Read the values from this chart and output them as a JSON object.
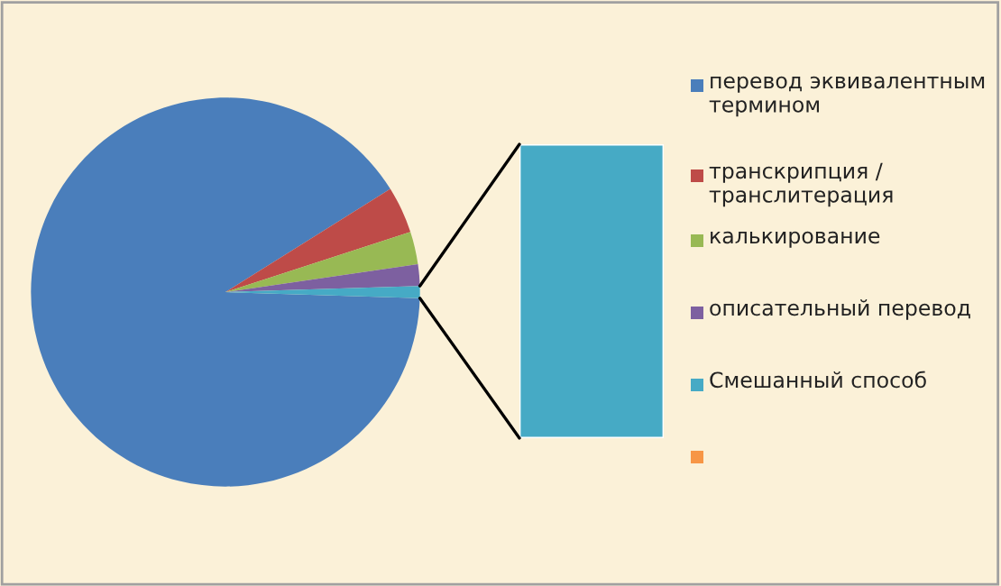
{
  "chart_data": {
    "type": "pie",
    "categories": [
      "перевод эквивалентным термином",
      "транскрипция / транслитерация",
      "калькирование",
      "описательный перевод",
      "Смешанный способ",
      null
    ],
    "values": [
      90.6,
      3.9,
      2.7,
      1.8,
      1.0,
      0
    ],
    "colors": [
      "#4a7ebb",
      "#be4b48",
      "#98b954",
      "#7d60a0",
      "#46aac5",
      "#f79646"
    ],
    "legend": "right"
  }
}
